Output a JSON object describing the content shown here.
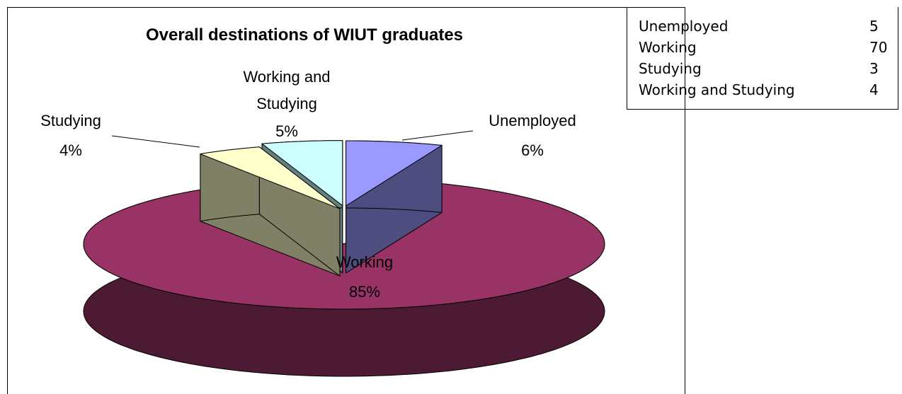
{
  "chart_data": {
    "type": "pie3d",
    "title": "Overall destinations of WIUT graduates",
    "categories": [
      "Unemployed",
      "Working",
      "Studying",
      "Working and Studying"
    ],
    "values": [
      6,
      85,
      4,
      5
    ],
    "value_labels": [
      "6%",
      "85%",
      "4%",
      "5%"
    ],
    "colors": [
      "#9999ff",
      "#993366",
      "#ffffcc",
      "#ccffff"
    ],
    "table": {
      "rows": [
        [
          "Unemployed",
          5
        ],
        [
          "Working",
          70
        ],
        [
          "Studying",
          3
        ],
        [
          "Working and Studying",
          4
        ]
      ]
    }
  }
}
